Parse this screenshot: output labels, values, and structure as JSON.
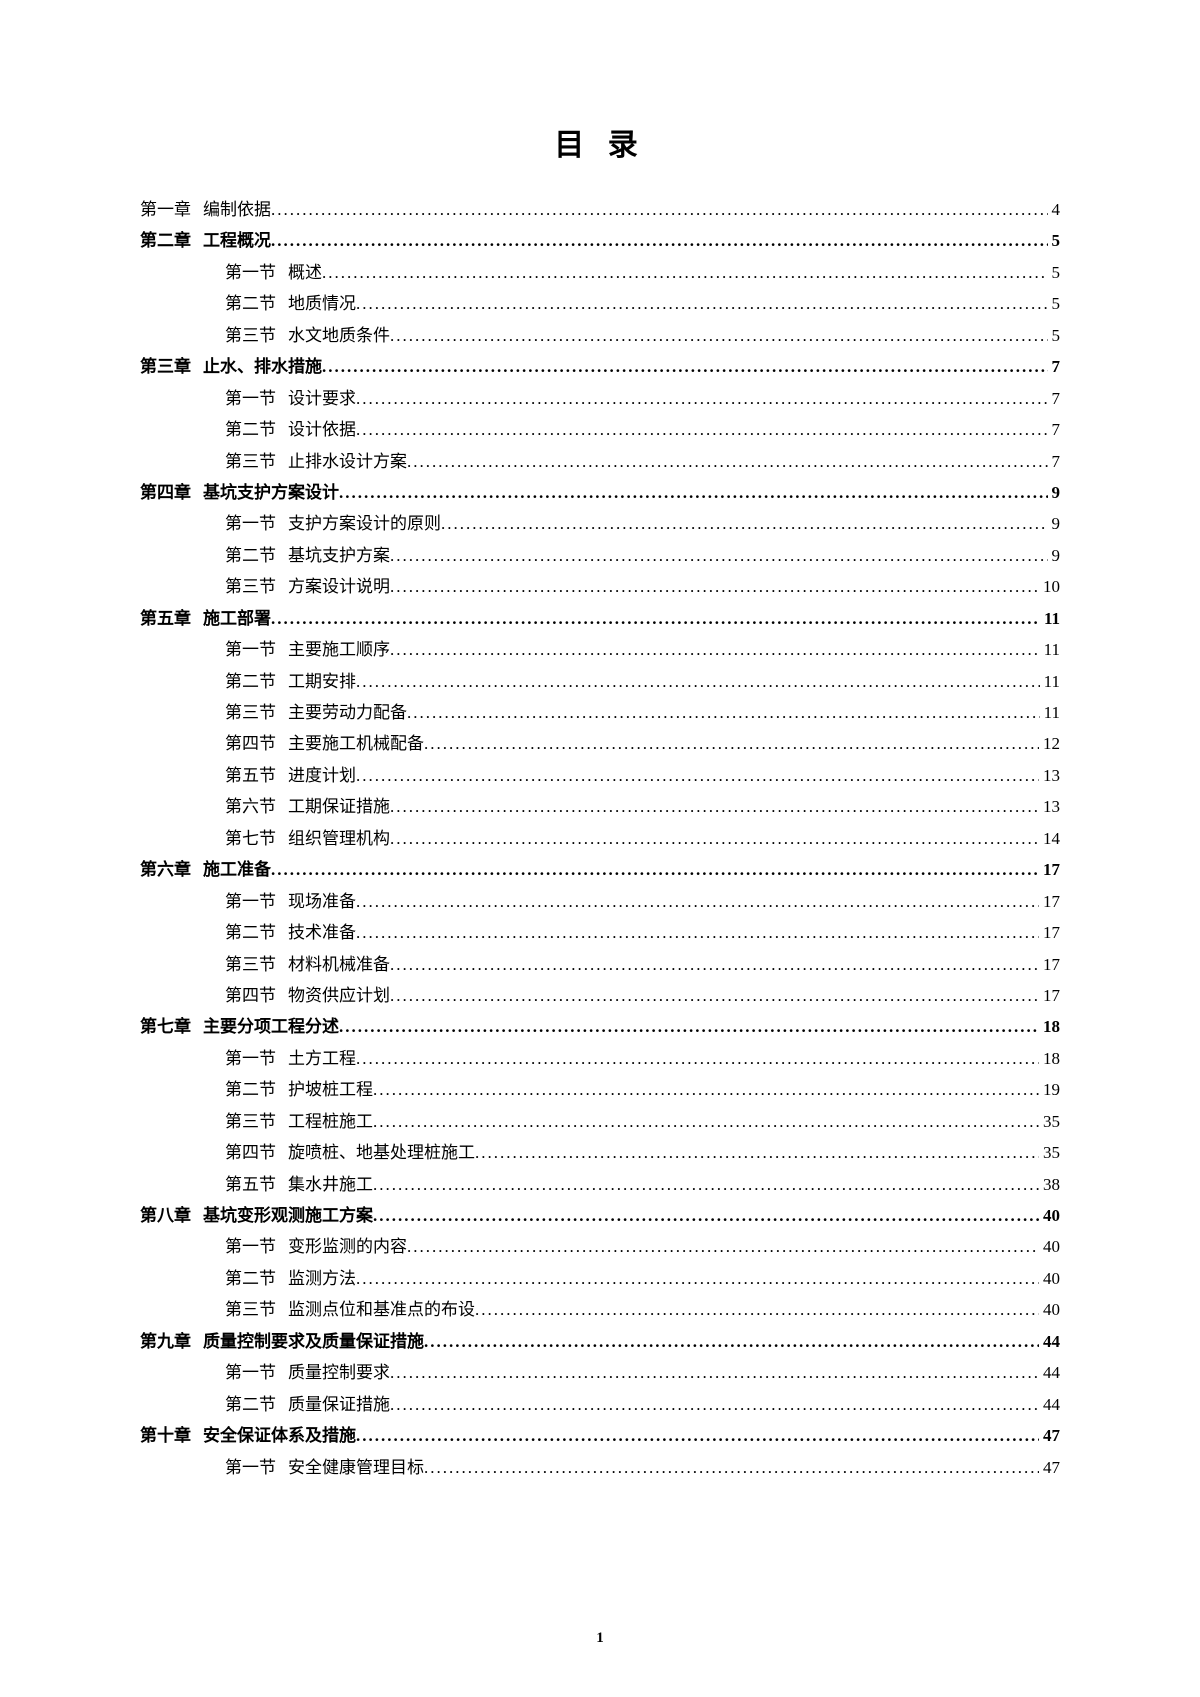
{
  "title": "目 录",
  "page_number": "1",
  "dots_fill": "......................................................................................................................................................................................................",
  "toc": [
    {
      "type": "chapter",
      "bold": false,
      "label": "第一章",
      "text": "编制依据",
      "page": "4"
    },
    {
      "type": "chapter",
      "bold": true,
      "label": "第二章",
      "text": "工程概况",
      "page": "5"
    },
    {
      "type": "section",
      "label": "第一节",
      "text": "概述",
      "page": "5"
    },
    {
      "type": "section",
      "label": "第二节",
      "text": "地质情况",
      "page": "5"
    },
    {
      "type": "section",
      "label": "第三节",
      "text": "水文地质条件",
      "page": "5"
    },
    {
      "type": "chapter",
      "bold": true,
      "label": "第三章",
      "text": "止水、排水措施",
      "page": "7"
    },
    {
      "type": "section",
      "label": "第一节",
      "text": "设计要求",
      "page": "7"
    },
    {
      "type": "section",
      "label": "第二节",
      "text": "设计依据",
      "page": "7"
    },
    {
      "type": "section",
      "label": "第三节",
      "text": "止排水设计方案",
      "page": "7"
    },
    {
      "type": "chapter",
      "bold": true,
      "label": "第四章",
      "text": "基坑支护方案设计",
      "page": "9"
    },
    {
      "type": "section",
      "label": "第一节",
      "text": "支护方案设计的原则",
      "page": "9"
    },
    {
      "type": "section",
      "label": "第二节",
      "text": "基坑支护方案",
      "page": "9"
    },
    {
      "type": "section",
      "label": "第三节",
      "text": "方案设计说明",
      "page": "10"
    },
    {
      "type": "chapter",
      "bold": true,
      "label": "第五章",
      "text": "施工部署",
      "page": "11"
    },
    {
      "type": "section",
      "label": "第一节",
      "text": "主要施工顺序",
      "page": "11"
    },
    {
      "type": "section",
      "label": "第二节",
      "text": "工期安排",
      "page": "11"
    },
    {
      "type": "section",
      "label": "第三节",
      "text": "主要劳动力配备",
      "page": "11"
    },
    {
      "type": "section",
      "label": "第四节",
      "text": "主要施工机械配备",
      "page": "12"
    },
    {
      "type": "section",
      "label": "第五节",
      "text": "进度计划",
      "page": "13"
    },
    {
      "type": "section",
      "label": "第六节",
      "text": "工期保证措施",
      "page": "13"
    },
    {
      "type": "section",
      "label": "第七节",
      "text": "组织管理机构",
      "page": "14"
    },
    {
      "type": "chapter",
      "bold": true,
      "label": "第六章",
      "text": "施工准备",
      "page": "17"
    },
    {
      "type": "section",
      "label": "第一节",
      "text": "现场准备",
      "page": "17"
    },
    {
      "type": "section",
      "label": "第二节",
      "text": "技术准备",
      "page": "17"
    },
    {
      "type": "section",
      "label": "第三节",
      "text": "材料机械准备",
      "page": "17"
    },
    {
      "type": "section",
      "label": "第四节",
      "text": "物资供应计划",
      "page": "17"
    },
    {
      "type": "chapter",
      "bold": true,
      "label": "第七章",
      "text": "主要分项工程分述",
      "page": "18"
    },
    {
      "type": "section",
      "label": "第一节",
      "text": "土方工程",
      "page": "18"
    },
    {
      "type": "section",
      "label": "第二节",
      "text": "护坡桩工程",
      "page": "19"
    },
    {
      "type": "section",
      "label": "第三节",
      "text": "工程桩施工",
      "page": "35"
    },
    {
      "type": "section",
      "label": "第四节",
      "text": "旋喷桩、地基处理桩施工",
      "page": "35"
    },
    {
      "type": "section",
      "label": "第五节",
      "text": "集水井施工",
      "page": "38"
    },
    {
      "type": "chapter",
      "bold": true,
      "label": "第八章",
      "text": "基坑变形观测施工方案",
      "page": "40"
    },
    {
      "type": "section",
      "label": "第一节",
      "text": "变形监测的内容",
      "page": "40"
    },
    {
      "type": "section",
      "label": "第二节",
      "text": "监测方法",
      "page": "40"
    },
    {
      "type": "section",
      "label": "第三节",
      "text": "监测点位和基准点的布设",
      "page": "40"
    },
    {
      "type": "chapter",
      "bold": true,
      "label": "第九章",
      "text": "质量控制要求及质量保证措施",
      "page": "44"
    },
    {
      "type": "section",
      "label": "第一节",
      "text": "质量控制要求",
      "page": "44"
    },
    {
      "type": "section",
      "label": "第二节",
      "text": "质量保证措施",
      "page": "44"
    },
    {
      "type": "chapter",
      "bold": true,
      "label": "第十章",
      "text": "安全保证体系及措施",
      "page": "47"
    },
    {
      "type": "section",
      "label": "第一节",
      "text": "安全健康管理目标",
      "page": "47"
    }
  ]
}
